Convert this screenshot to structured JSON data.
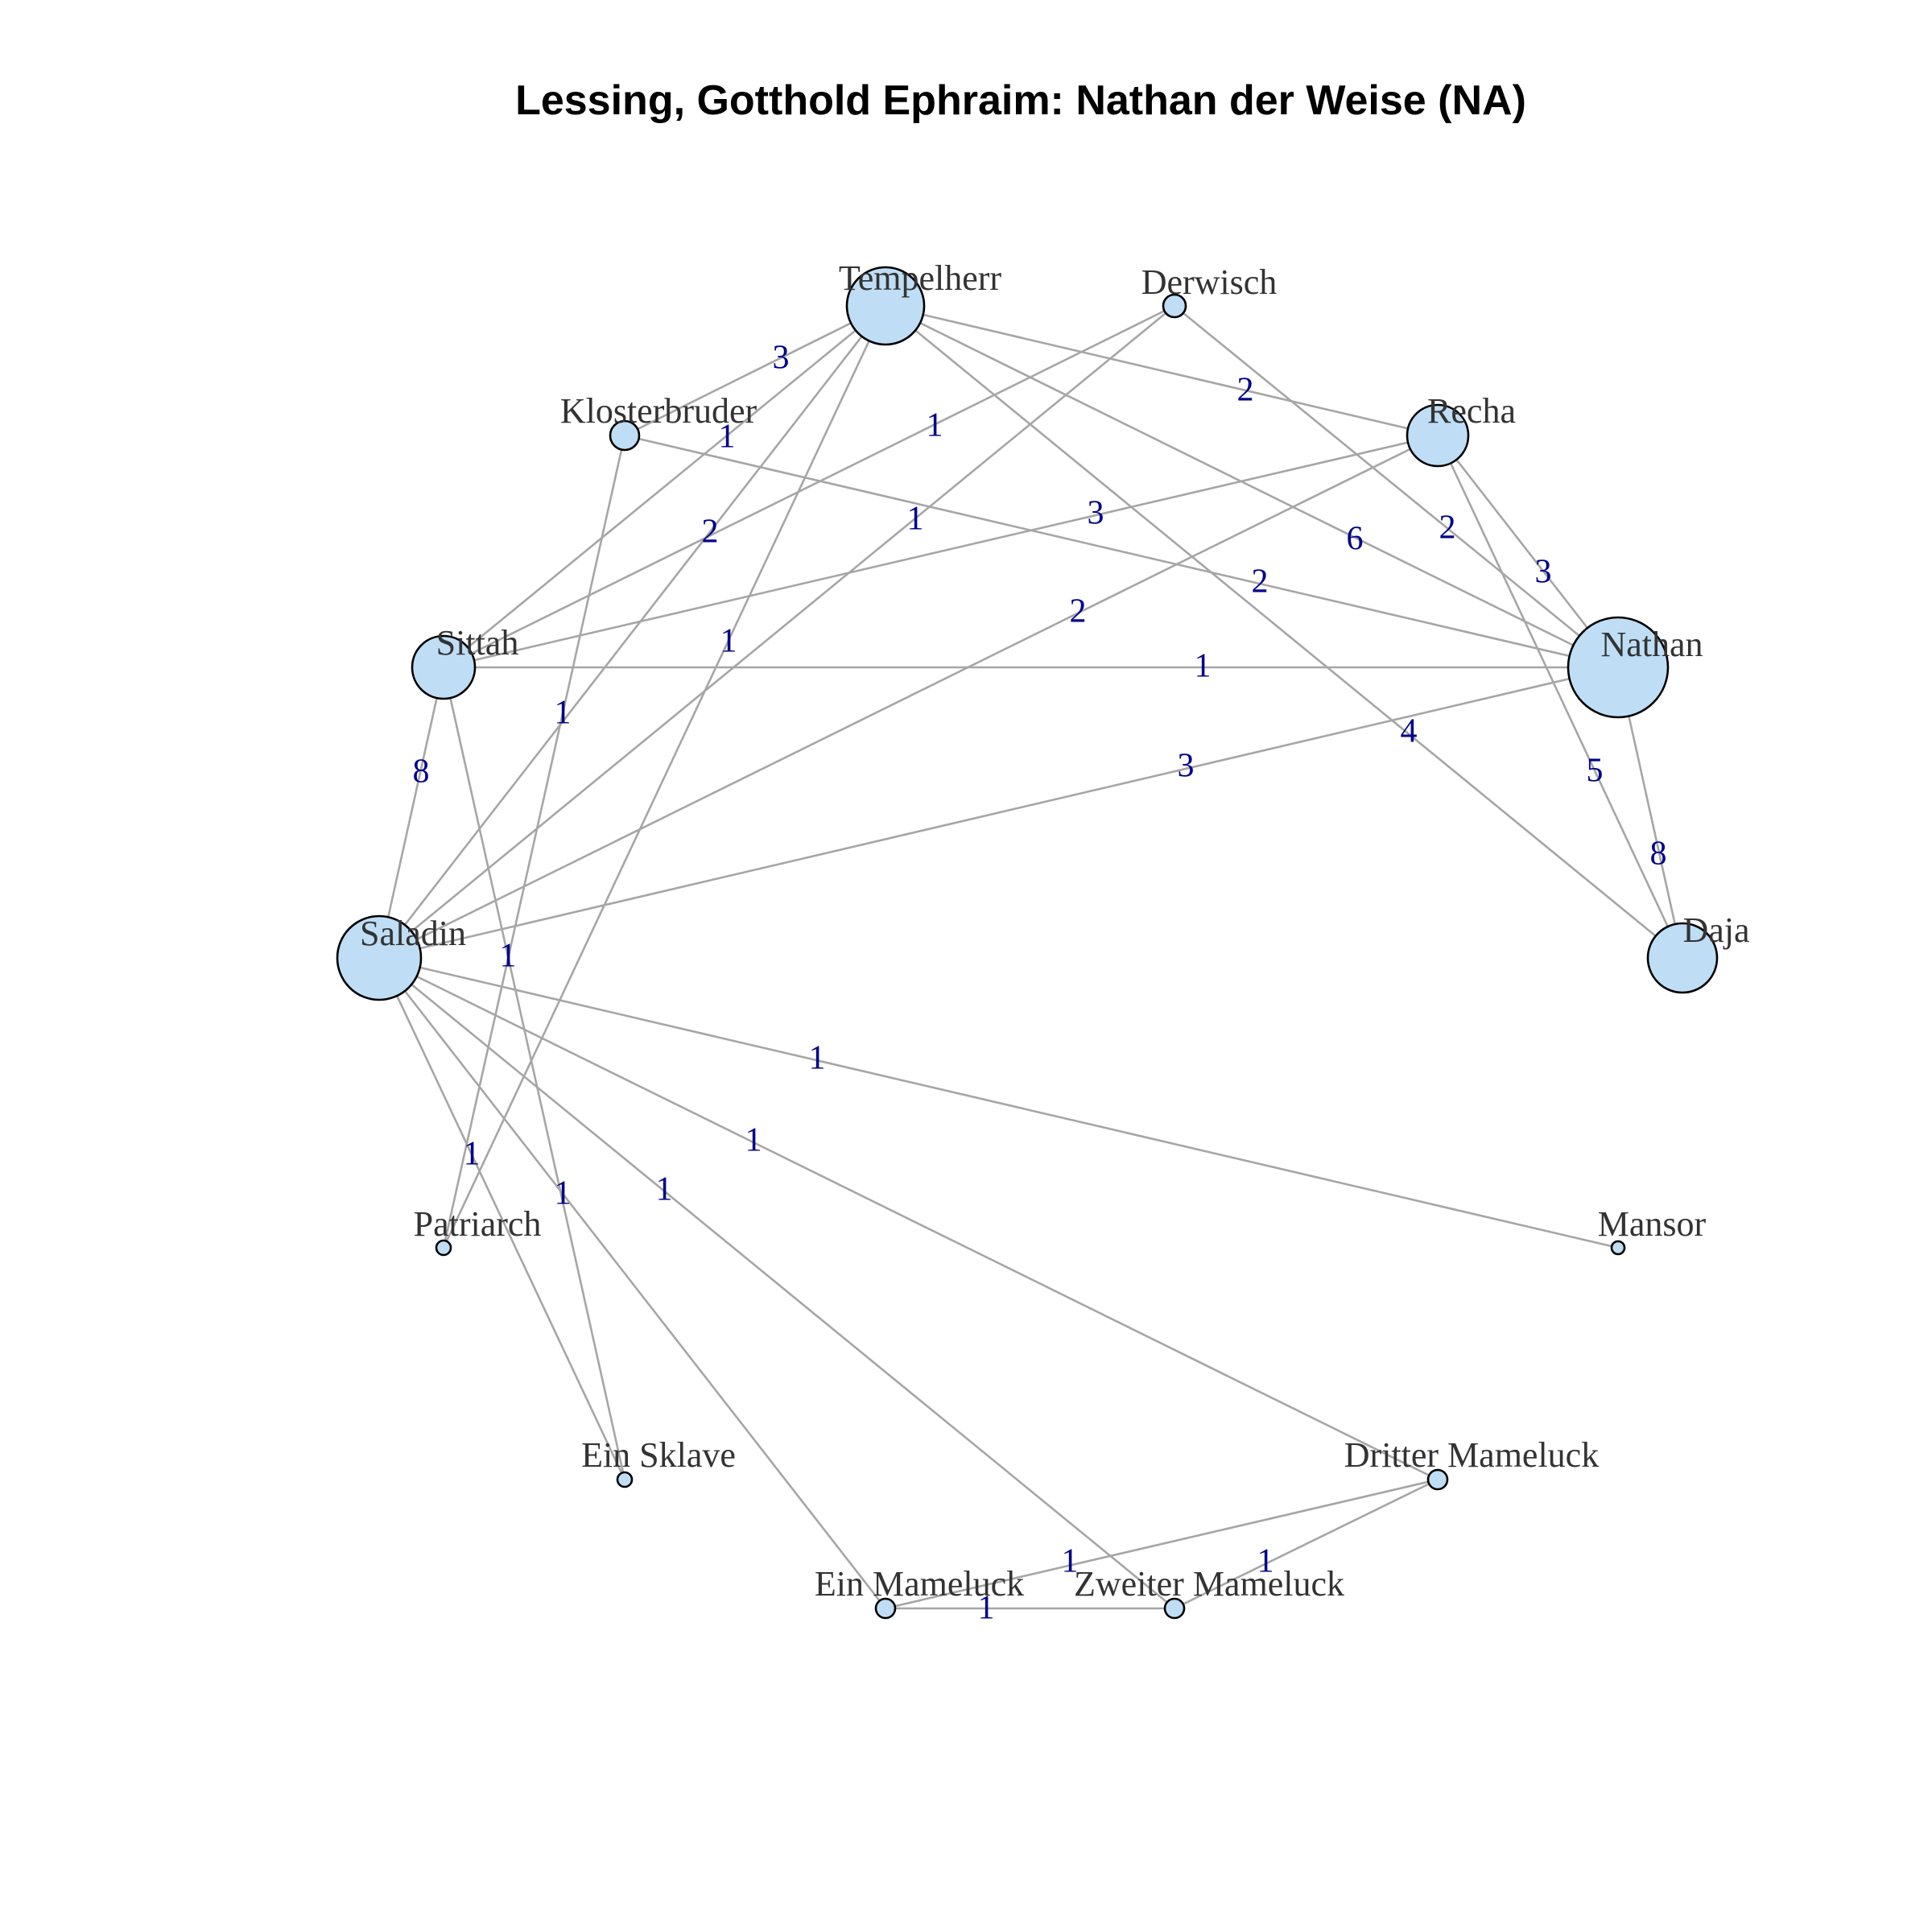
{
  "title": "Lessing, Gotthold Ephraim: Nathan der Weise (NA)",
  "colors": {
    "node_fill": "#BFDEF5",
    "node_stroke": "#000000",
    "edge": "#A6A6A6",
    "edge_label": "#00008B",
    "node_label": "#333333"
  },
  "nodes": [
    {
      "id": "tempelherr",
      "label": "Tempelherr"
    },
    {
      "id": "derwisch",
      "label": "Derwisch"
    },
    {
      "id": "recha",
      "label": "Recha"
    },
    {
      "id": "nathan",
      "label": "Nathan"
    },
    {
      "id": "daja",
      "label": "Daja"
    },
    {
      "id": "mansor",
      "label": "Mansor"
    },
    {
      "id": "dritter",
      "label": "Dritter Mameluck"
    },
    {
      "id": "zweiter",
      "label": "Zweiter Mameluck"
    },
    {
      "id": "einmameluck",
      "label": "Ein Mameluck"
    },
    {
      "id": "sklave",
      "label": "Ein Sklave"
    },
    {
      "id": "patriarch",
      "label": "Patriarch"
    },
    {
      "id": "saladin",
      "label": "Saladin"
    },
    {
      "id": "sittah",
      "label": "Sittah"
    },
    {
      "id": "klosterbruder",
      "label": "Klosterbruder"
    }
  ],
  "edges": [
    {
      "source": "tempelherr",
      "target": "klosterbruder",
      "weight": "3"
    },
    {
      "source": "tempelherr",
      "target": "recha",
      "weight": "2"
    },
    {
      "source": "tempelherr",
      "target": "sittah",
      "weight": "1"
    },
    {
      "source": "tempelherr",
      "target": "saladin",
      "weight": "2"
    },
    {
      "source": "tempelherr",
      "target": "patriarch",
      "weight": "1"
    },
    {
      "source": "tempelherr",
      "target": "nathan",
      "weight": "6"
    },
    {
      "source": "tempelherr",
      "target": "daja",
      "weight": "4"
    },
    {
      "source": "derwisch",
      "target": "sittah",
      "weight": "1"
    },
    {
      "source": "derwisch",
      "target": "saladin",
      "weight": "1"
    },
    {
      "source": "derwisch",
      "target": "nathan",
      "weight": "2"
    },
    {
      "source": "klosterbruder",
      "target": "nathan",
      "weight": "2"
    },
    {
      "source": "klosterbruder",
      "target": "patriarch",
      "weight": "1"
    },
    {
      "source": "recha",
      "target": "sittah",
      "weight": "3"
    },
    {
      "source": "recha",
      "target": "saladin",
      "weight": "2"
    },
    {
      "source": "recha",
      "target": "nathan",
      "weight": "3"
    },
    {
      "source": "recha",
      "target": "daja",
      "weight": "5"
    },
    {
      "source": "sittah",
      "target": "nathan",
      "weight": "1"
    },
    {
      "source": "sittah",
      "target": "saladin",
      "weight": "8"
    },
    {
      "source": "sittah",
      "target": "sklave",
      "weight": "1"
    },
    {
      "source": "nathan",
      "target": "saladin",
      "weight": "3"
    },
    {
      "source": "nathan",
      "target": "daja",
      "weight": "8"
    },
    {
      "source": "saladin",
      "target": "mansor",
      "weight": "1"
    },
    {
      "source": "saladin",
      "target": "dritter",
      "weight": "1"
    },
    {
      "source": "saladin",
      "target": "zweiter",
      "weight": "1"
    },
    {
      "source": "saladin",
      "target": "einmameluck",
      "weight": "1"
    },
    {
      "source": "saladin",
      "target": "sklave",
      "weight": "1"
    },
    {
      "source": "einmameluck",
      "target": "dritter",
      "weight": "1"
    },
    {
      "source": "einmameluck",
      "target": "zweiter",
      "weight": "1"
    },
    {
      "source": "zweiter",
      "target": "dritter",
      "weight": "1"
    }
  ]
}
